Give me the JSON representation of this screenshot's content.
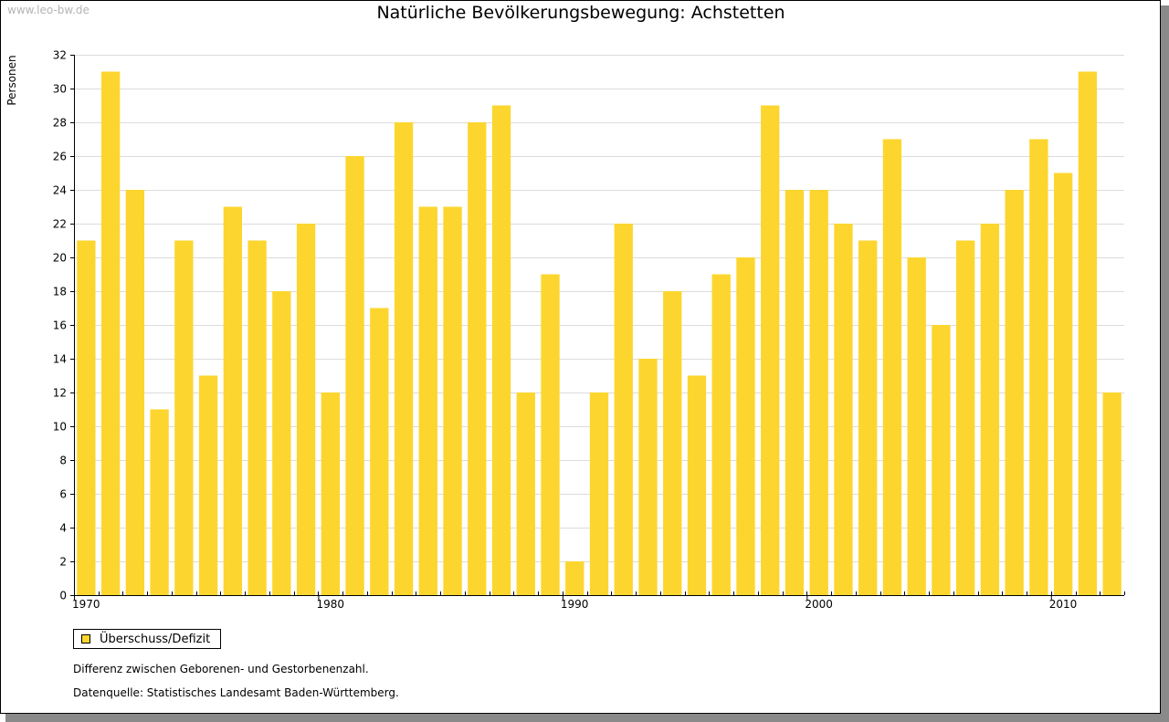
{
  "watermark": "www.leo-bw.de",
  "legend": {
    "label": "Überschuss/Defizit"
  },
  "notes": {
    "description": "Differenz zwischen Geborenen- und Gestorbenenzahl.",
    "source": "Datenquelle: Statistisches Landesamt Baden-Württemberg."
  },
  "chart_data": {
    "type": "bar",
    "title": "Natürliche Bevölkerungsbewegung: Achstetten",
    "xlabel": "",
    "ylabel": "Personen",
    "ylim": [
      0,
      32
    ],
    "ytick_step": 2,
    "grid": true,
    "legend_position": "bottom-left",
    "x_tick_labels": [
      "1970",
      "1980",
      "1990",
      "2000",
      "2010"
    ],
    "categories": [
      1970,
      1971,
      1972,
      1973,
      1974,
      1975,
      1976,
      1977,
      1978,
      1979,
      1980,
      1981,
      1982,
      1983,
      1984,
      1985,
      1986,
      1987,
      1988,
      1989,
      1990,
      1991,
      1992,
      1993,
      1994,
      1995,
      1996,
      1997,
      1998,
      1999,
      2000,
      2001,
      2002,
      2003,
      2004,
      2005,
      2006,
      2007,
      2008,
      2009,
      2010,
      2011,
      2012
    ],
    "series": [
      {
        "name": "Überschuss/Defizit",
        "color": "#fcd62e",
        "values": [
          21,
          31,
          24,
          11,
          21,
          13,
          23,
          21,
          18,
          22,
          12,
          26,
          17,
          28,
          23,
          23,
          28,
          29,
          12,
          19,
          2,
          12,
          22,
          14,
          18,
          13,
          19,
          20,
          29,
          24,
          24,
          22,
          21,
          27,
          20,
          16,
          21,
          22,
          24,
          27,
          25,
          31,
          12
        ]
      }
    ]
  }
}
